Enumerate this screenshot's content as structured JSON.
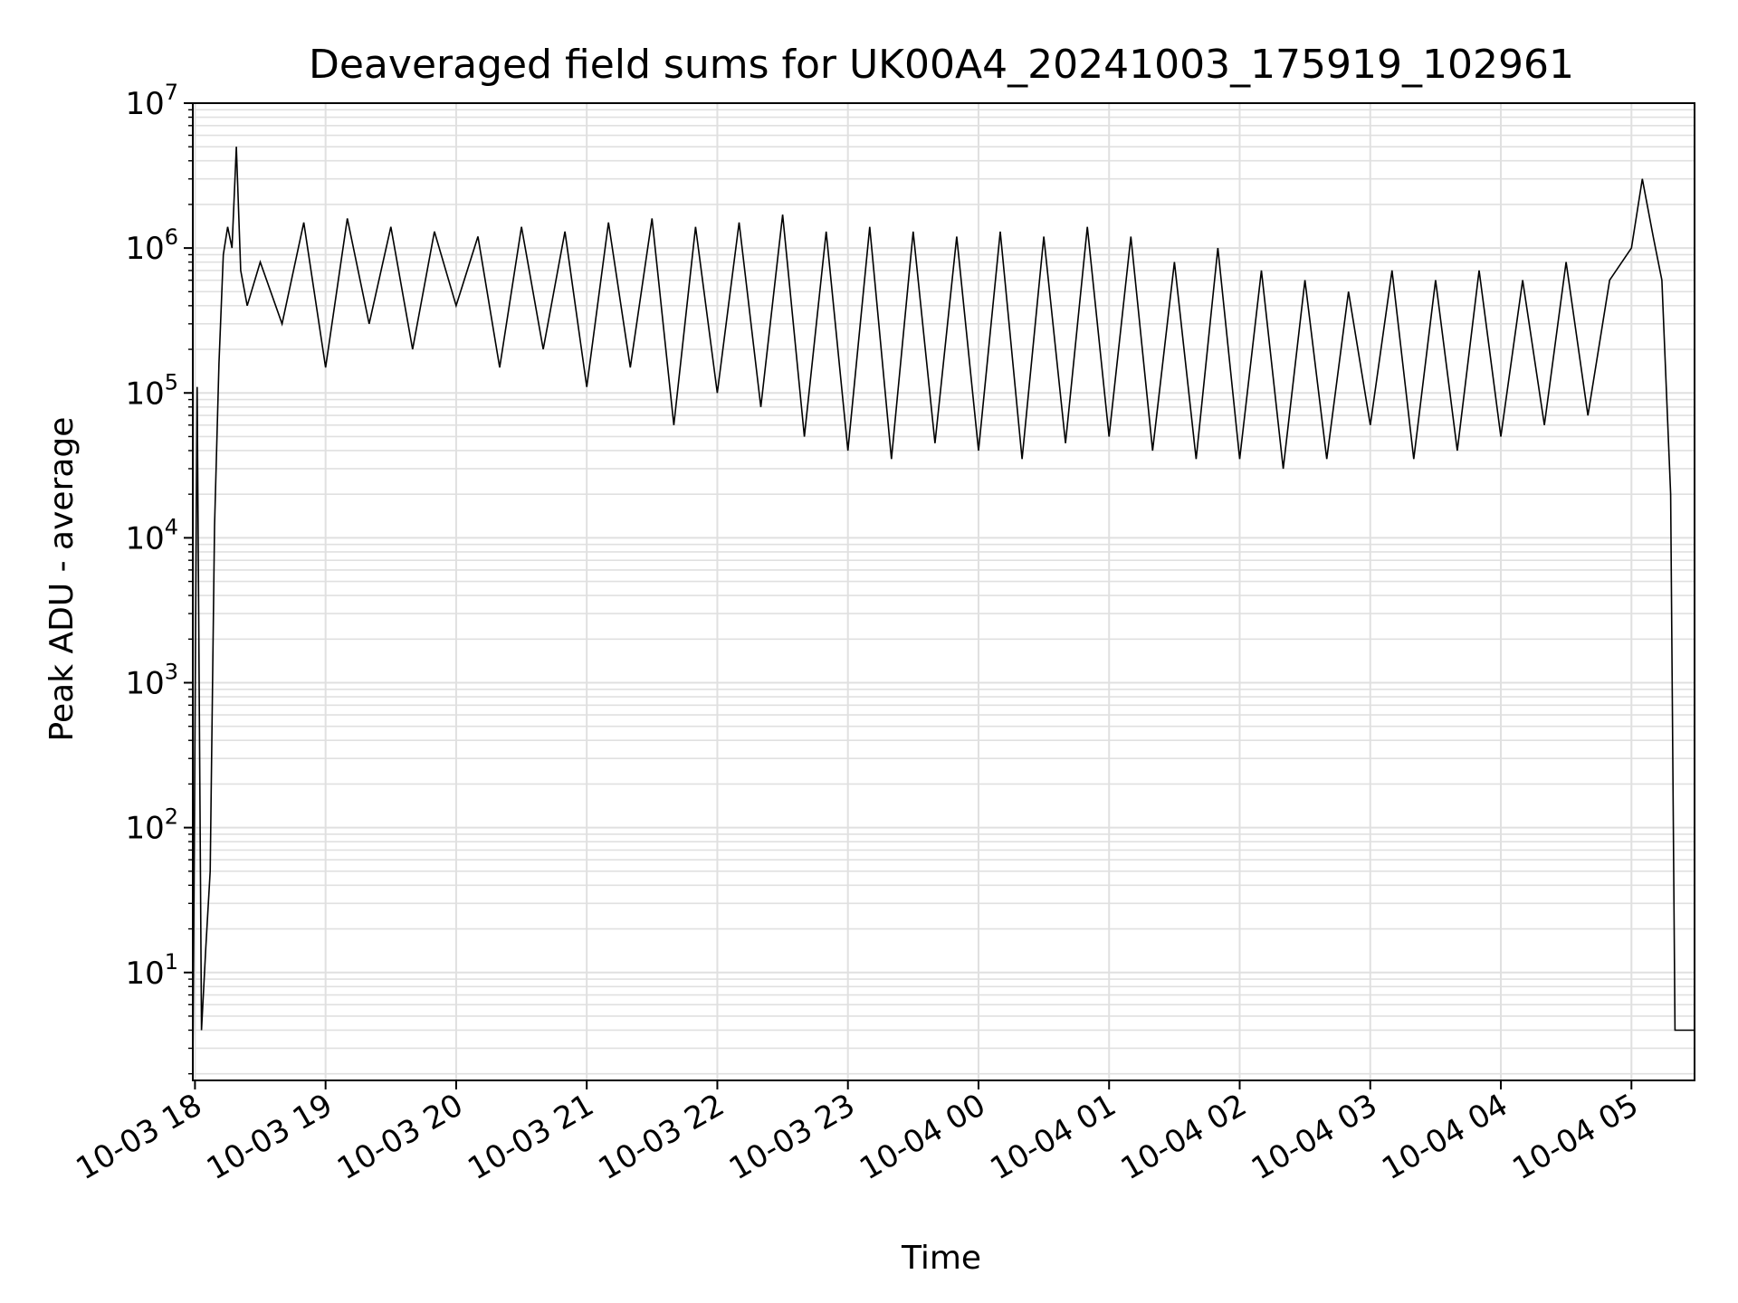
{
  "chart_data": {
    "type": "line",
    "title": "Deaveraged field sums for UK00A4_20241003_175919_102961",
    "xlabel": "Time",
    "ylabel": "Peak ADU - average",
    "y_scale": "log",
    "ylim": [
      1.8,
      10000000
    ],
    "xlim": [
      "2024-10-03 17:59",
      "2024-10-04 05:29"
    ],
    "grid": true,
    "grid_minor": true,
    "line_color": "#000000",
    "grid_color": "#e0e0e0",
    "x_ticks": [
      "10-03 18",
      "10-03 19",
      "10-03 20",
      "10-03 21",
      "10-03 22",
      "10-03 23",
      "10-04 00",
      "10-04 01",
      "10-04 02",
      "10-04 03",
      "10-04 04",
      "10-04 05"
    ],
    "y_ticks": [
      {
        "value": 10,
        "base": "10",
        "exp": "1"
      },
      {
        "value": 100,
        "base": "10",
        "exp": "2"
      },
      {
        "value": 1000,
        "base": "10",
        "exp": "3"
      },
      {
        "value": 10000,
        "base": "10",
        "exp": "4"
      },
      {
        "value": 100000,
        "base": "10",
        "exp": "5"
      },
      {
        "value": 1000000,
        "base": "10",
        "exp": "6"
      },
      {
        "value": 10000000,
        "base": "10",
        "exp": "7"
      }
    ],
    "series": [
      {
        "x": [
          "2024-10-03 17:59",
          "2024-10-03 18:01",
          "2024-10-03 18:03",
          "2024-10-03 18:05",
          "2024-10-03 18:07",
          "2024-10-03 18:09",
          "2024-10-03 18:11",
          "2024-10-03 18:13",
          "2024-10-03 18:15",
          "2024-10-03 18:17",
          "2024-10-03 18:19",
          "2024-10-03 18:21",
          "2024-10-03 18:24",
          "2024-10-03 18:30",
          "2024-10-03 18:40",
          "2024-10-03 18:50",
          "2024-10-03 19:00",
          "2024-10-03 19:10",
          "2024-10-03 19:20",
          "2024-10-03 19:30",
          "2024-10-03 19:40",
          "2024-10-03 19:50",
          "2024-10-03 20:00",
          "2024-10-03 20:10",
          "2024-10-03 20:20",
          "2024-10-03 20:30",
          "2024-10-03 20:40",
          "2024-10-03 20:50",
          "2024-10-03 21:00",
          "2024-10-03 21:10",
          "2024-10-03 21:20",
          "2024-10-03 21:30",
          "2024-10-03 21:40",
          "2024-10-03 21:50",
          "2024-10-03 22:00",
          "2024-10-03 22:10",
          "2024-10-03 22:20",
          "2024-10-03 22:30",
          "2024-10-03 22:40",
          "2024-10-03 22:50",
          "2024-10-03 23:00",
          "2024-10-03 23:10",
          "2024-10-03 23:20",
          "2024-10-03 23:30",
          "2024-10-03 23:40",
          "2024-10-03 23:50",
          "2024-10-04 00:00",
          "2024-10-04 00:10",
          "2024-10-04 00:20",
          "2024-10-04 00:30",
          "2024-10-04 00:40",
          "2024-10-04 00:50",
          "2024-10-04 01:00",
          "2024-10-04 01:10",
          "2024-10-04 01:20",
          "2024-10-04 01:30",
          "2024-10-04 01:40",
          "2024-10-04 01:50",
          "2024-10-04 02:00",
          "2024-10-04 02:10",
          "2024-10-04 02:20",
          "2024-10-04 02:30",
          "2024-10-04 02:40",
          "2024-10-04 02:50",
          "2024-10-04 03:00",
          "2024-10-04 03:10",
          "2024-10-04 03:20",
          "2024-10-04 03:30",
          "2024-10-04 03:40",
          "2024-10-04 03:50",
          "2024-10-04 04:00",
          "2024-10-04 04:10",
          "2024-10-04 04:20",
          "2024-10-04 04:30",
          "2024-10-04 04:40",
          "2024-10-04 04:50",
          "2024-10-04 05:00",
          "2024-10-04 05:05",
          "2024-10-04 05:10",
          "2024-10-04 05:14",
          "2024-10-04 05:18",
          "2024-10-04 05:20",
          "2024-10-04 05:22",
          "2024-10-04 05:25",
          "2024-10-04 05:29"
        ],
        "y": [
          2,
          110000,
          4,
          15,
          50,
          12000,
          160000,
          900000,
          1400000,
          1000000,
          5000000,
          700000,
          400000,
          800000,
          300000,
          1500000,
          150000,
          1600000,
          300000,
          1400000,
          200000,
          1300000,
          400000,
          1200000,
          150000,
          1400000,
          200000,
          1300000,
          110000,
          1500000,
          150000,
          1600000,
          60000,
          1400000,
          100000,
          1500000,
          80000,
          1700000,
          50000,
          1300000,
          40000,
          1400000,
          35000,
          1300000,
          45000,
          1200000,
          40000,
          1300000,
          35000,
          1200000,
          45000,
          1400000,
          50000,
          1200000,
          40000,
          800000,
          35000,
          1000000,
          35000,
          700000,
          30000,
          600000,
          35000,
          500000,
          60000,
          700000,
          35000,
          600000,
          40000,
          700000,
          50000,
          600000,
          60000,
          800000,
          70000,
          600000,
          1000000,
          3000000,
          1200000,
          600000,
          20000,
          4,
          4,
          4,
          4
        ]
      }
    ]
  }
}
